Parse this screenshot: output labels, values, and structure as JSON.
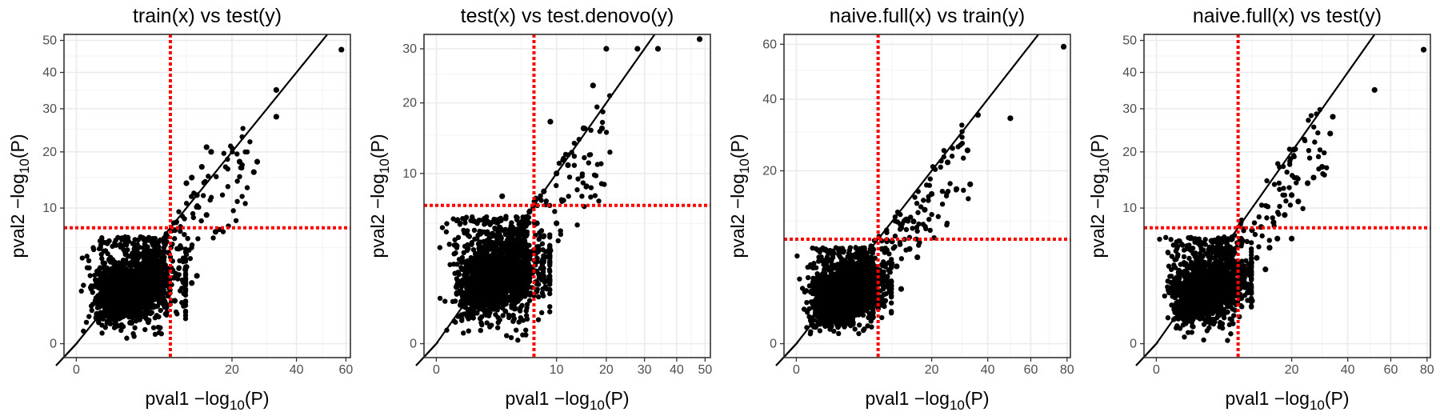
{
  "chart_data": [
    {
      "type": "scatter",
      "title": "train(x) vs test(y)",
      "xlabel": "pval1 −log10(P)",
      "ylabel": "pval2 −log10(P)",
      "xticks": [
        0,
        20,
        40,
        60
      ],
      "yticks": [
        0,
        10,
        20,
        30,
        40,
        50
      ],
      "xlim": [
        0,
        62
      ],
      "ylim": [
        0,
        52
      ],
      "threshold_x": 7.3,
      "threshold_y": 7.3,
      "diagonal": true,
      "grid": true,
      "sample_points": [
        [
          58,
          47
        ],
        [
          33,
          35
        ],
        [
          33,
          28
        ],
        [
          27,
          18
        ],
        [
          26,
          16
        ],
        [
          22,
          18
        ],
        [
          14,
          21
        ],
        [
          15,
          20
        ],
        [
          13,
          17
        ],
        [
          11,
          15
        ],
        [
          10,
          14
        ],
        [
          12,
          12
        ],
        [
          14,
          9
        ],
        [
          8,
          7
        ],
        [
          16,
          6.8
        ],
        [
          9,
          5
        ],
        [
          7,
          4.5
        ],
        [
          6,
          3
        ],
        [
          5,
          2
        ],
        [
          10,
          3.2
        ],
        [
          12,
          2.5
        ],
        [
          8,
          1
        ],
        [
          11,
          2
        ]
      ]
    },
    {
      "type": "scatter",
      "title": "test(x) vs test.denovo(y)",
      "xlabel": "pval1 −log10(P)",
      "ylabel": "pval2 −log10(P)",
      "xticks": [
        0,
        10,
        20,
        30,
        40,
        50
      ],
      "yticks": [
        0,
        10,
        20,
        30
      ],
      "xlim": [
        0,
        52
      ],
      "ylim": [
        0,
        33
      ],
      "threshold_x": 6.6,
      "threshold_y": 6.6,
      "diagonal": true,
      "grid": true,
      "sample_points": [
        [
          48,
          32
        ],
        [
          34,
          30
        ],
        [
          28,
          30
        ],
        [
          20,
          30
        ],
        [
          17,
          23
        ],
        [
          19,
          16
        ],
        [
          15,
          16
        ],
        [
          9,
          17
        ],
        [
          10,
          10
        ],
        [
          12,
          11
        ],
        [
          8,
          8
        ],
        [
          3,
          7.5
        ],
        [
          6,
          6
        ],
        [
          7,
          5
        ],
        [
          4,
          4
        ],
        [
          5,
          3
        ],
        [
          6,
          2
        ],
        [
          8,
          4
        ],
        [
          9,
          3
        ],
        [
          10,
          5
        ],
        [
          7,
          1
        ]
      ]
    },
    {
      "type": "scatter",
      "title": "naive.full(x) vs train(y)",
      "xlabel": "pval1 −log10(P)",
      "ylabel": "pval2 −log10(P)",
      "xticks": [
        0,
        20,
        40,
        60,
        80
      ],
      "yticks": [
        0,
        20,
        40,
        60
      ],
      "xlim": [
        0,
        82
      ],
      "ylim": [
        0,
        64
      ],
      "threshold_x": 7.3,
      "threshold_y": 7.3,
      "diagonal": true,
      "grid": true,
      "sample_points": [
        [
          78,
          59
        ],
        [
          50,
          34
        ],
        [
          36,
          35
        ],
        [
          32,
          25
        ],
        [
          33,
          17
        ],
        [
          25,
          22
        ],
        [
          28,
          16
        ],
        [
          20,
          15
        ],
        [
          18,
          12
        ],
        [
          15,
          10
        ],
        [
          12,
          9
        ],
        [
          10,
          7
        ],
        [
          8,
          6
        ],
        [
          14,
          6
        ],
        [
          16,
          5
        ],
        [
          11,
          4
        ],
        [
          9,
          3
        ],
        [
          7,
          2
        ],
        [
          12,
          2
        ],
        [
          6,
          1
        ]
      ]
    },
    {
      "type": "scatter",
      "title": "naive.full(x) vs test(y)",
      "xlabel": "pval1 −log10(P)",
      "ylabel": "pval2 −log10(P)",
      "xticks": [
        0,
        20,
        40,
        60,
        80
      ],
      "yticks": [
        0,
        10,
        20,
        30,
        40,
        50
      ],
      "xlim": [
        0,
        82
      ],
      "ylim": [
        0,
        52
      ],
      "threshold_x": 7.3,
      "threshold_y": 7.3,
      "diagonal": true,
      "grid": true,
      "sample_points": [
        [
          78,
          47
        ],
        [
          52,
          35
        ],
        [
          34,
          28
        ],
        [
          33,
          24
        ],
        [
          30,
          17
        ],
        [
          27,
          15
        ],
        [
          25,
          14
        ],
        [
          20,
          12
        ],
        [
          22,
          11
        ],
        [
          18,
          9
        ],
        [
          15,
          8
        ],
        [
          12,
          7.4
        ],
        [
          10,
          7
        ],
        [
          16,
          6
        ],
        [
          20,
          6
        ],
        [
          14,
          5
        ],
        [
          11,
          4
        ],
        [
          9,
          3
        ],
        [
          13,
          3
        ],
        [
          8,
          2
        ],
        [
          10,
          1
        ]
      ]
    }
  ]
}
